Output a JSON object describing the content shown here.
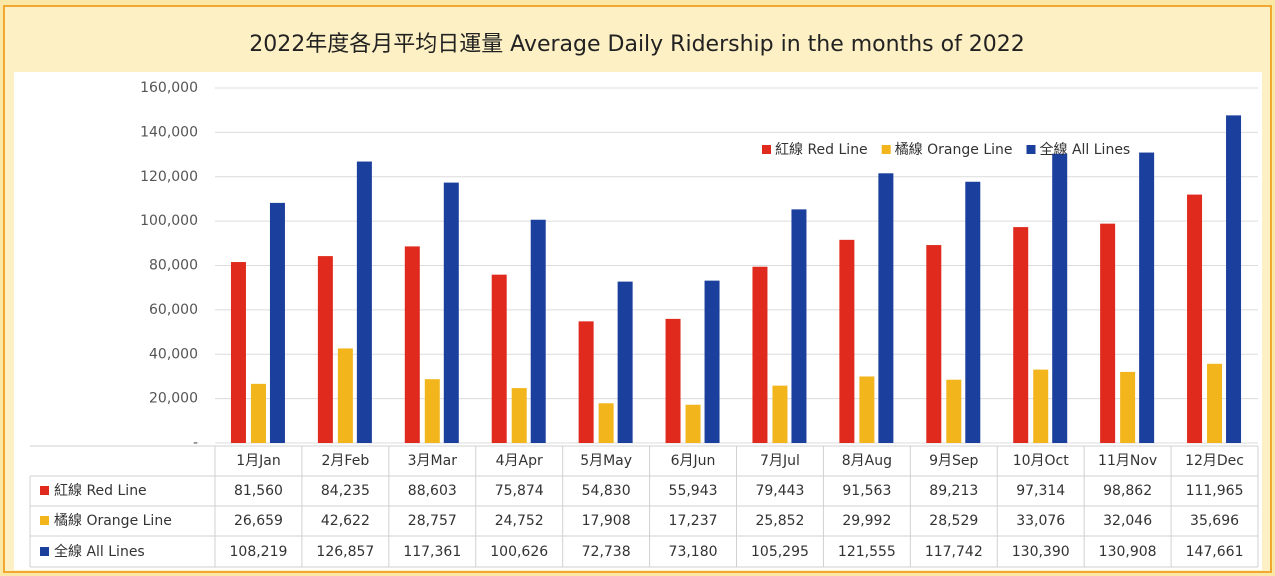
{
  "chart_data": {
    "type": "bar",
    "title": "2022年度各月平均日運量  Average Daily Ridership in the months of 2022",
    "categories": [
      "1月Jan",
      "2月Feb",
      "3月Mar",
      "4月Apr",
      "5月May",
      "6月Jun",
      "7月Jul",
      "8月Aug",
      "9月Sep",
      "10月Oct",
      "11月Nov",
      "12月Dec"
    ],
    "series": [
      {
        "name": "紅線 Red Line",
        "color": "#e02a1e",
        "values": [
          81560,
          84235,
          88603,
          75874,
          54830,
          55943,
          79443,
          91563,
          89213,
          97314,
          98862,
          111965
        ],
        "value_labels": [
          "81,560",
          "84,235",
          "88,603",
          "75,874",
          "54,830",
          "55,943",
          "79,443",
          "91,563",
          "89,213",
          "97,314",
          "98,862",
          "111,965"
        ]
      },
      {
        "name": "橘線 Orange Line",
        "color": "#f2b51c",
        "values": [
          26659,
          42622,
          28757,
          24752,
          17908,
          17237,
          25852,
          29992,
          28529,
          33076,
          32046,
          35696
        ],
        "value_labels": [
          "26,659",
          "42,622",
          "28,757",
          "24,752",
          "17,908",
          "17,237",
          "25,852",
          "29,992",
          "28,529",
          "33,076",
          "32,046",
          "35,696"
        ]
      },
      {
        "name": "全線 All Lines",
        "color": "#1b3f9c",
        "values": [
          108219,
          126857,
          117361,
          100626,
          72738,
          73180,
          105295,
          121555,
          117742,
          130390,
          130908,
          147661
        ],
        "value_labels": [
          "108,219",
          "126,857",
          "117,361",
          "100,626",
          "72,738",
          "73,180",
          "105,295",
          "121,555",
          "117,742",
          "130,390",
          "130,908",
          "147,661"
        ]
      }
    ],
    "ylim": [
      0,
      160000
    ],
    "yticks": [
      {
        "value": 0,
        "label": "-"
      },
      {
        "value": 20000,
        "label": "20,000"
      },
      {
        "value": 40000,
        "label": "40,000"
      },
      {
        "value": 60000,
        "label": "60,000"
      },
      {
        "value": 80000,
        "label": "80,000"
      },
      {
        "value": 100000,
        "label": "100,000"
      },
      {
        "value": 120000,
        "label": "120,000"
      },
      {
        "value": 140000,
        "label": "140,000"
      },
      {
        "value": 160000,
        "label": "160,000"
      }
    ],
    "grid": true,
    "legend": "top-right"
  }
}
